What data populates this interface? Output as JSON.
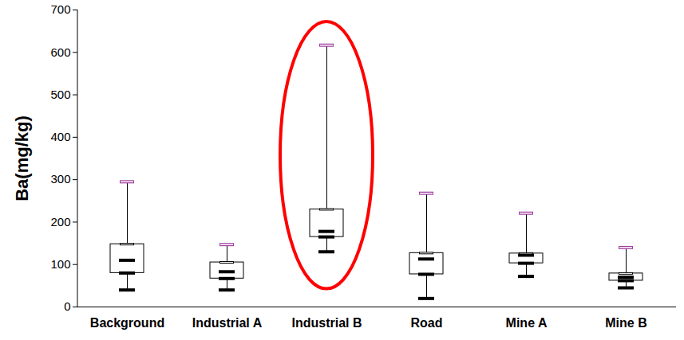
{
  "chart_data": {
    "type": "box",
    "y_label": "Ba(mg/kg)",
    "categories": [
      "Background",
      "Industrial A",
      "Industrial B",
      "Road",
      "Mine A",
      "Mine B"
    ],
    "min": [
      40,
      40,
      130,
      20,
      72,
      45
    ],
    "q1": [
      80,
      67,
      165,
      77,
      103,
      62
    ],
    "median": [
      110,
      83,
      178,
      113,
      122,
      70
    ],
    "q3": [
      148,
      105,
      230,
      127,
      126,
      79
    ],
    "max": [
      295,
      147,
      617,
      268,
      221,
      140
    ],
    "ylim": [
      0,
      700
    ],
    "yticks": [
      0,
      100,
      200,
      300,
      400,
      500,
      600,
      700
    ],
    "grid": false
  }
}
